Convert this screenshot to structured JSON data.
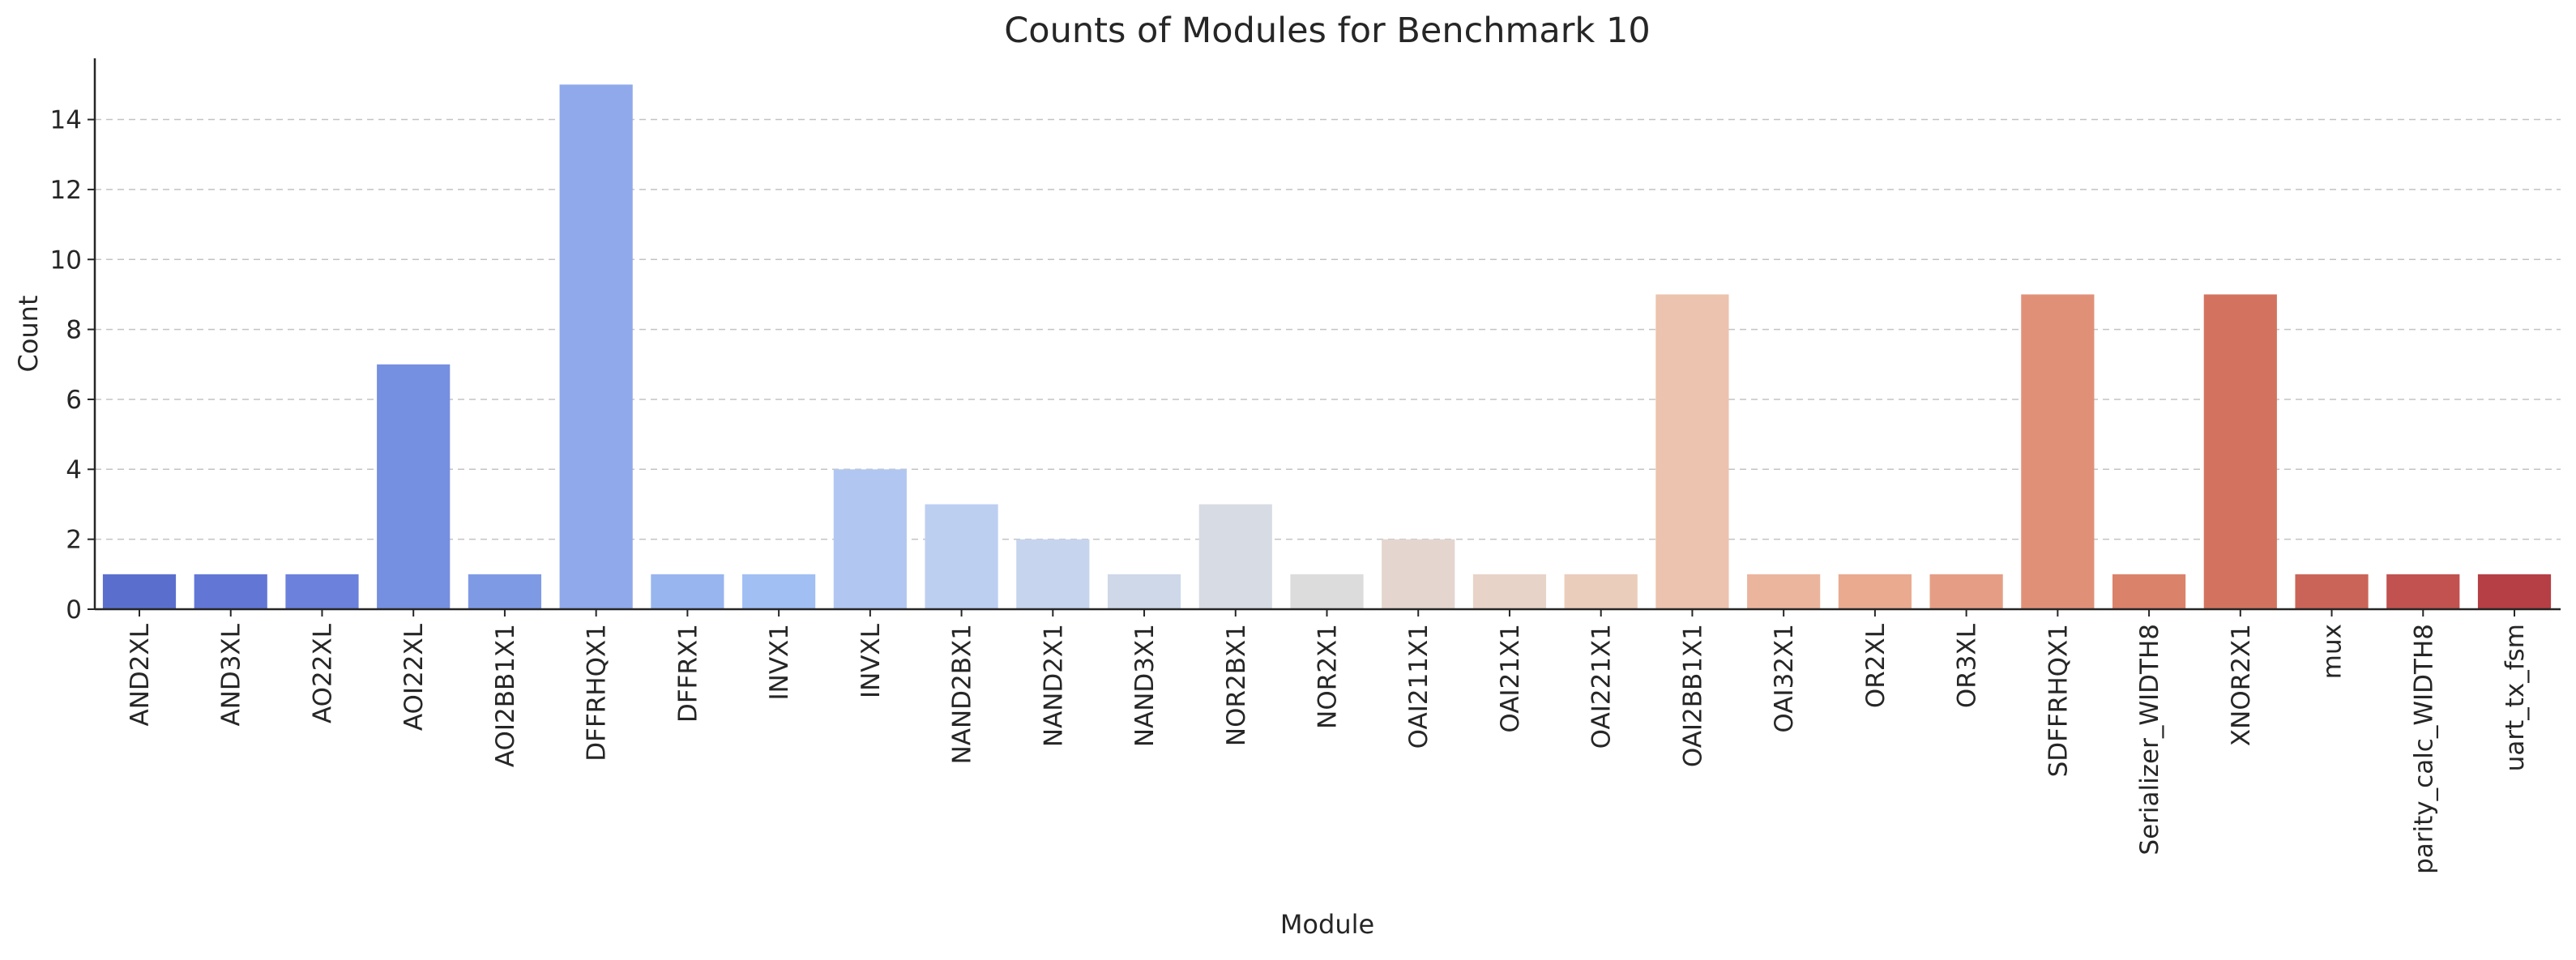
{
  "chart_data": {
    "type": "bar",
    "title": "Counts of Modules for Benchmark 10",
    "xlabel": "Module",
    "ylabel": "Count",
    "ylim": [
      0,
      15.75
    ],
    "yticks": [
      0,
      2,
      4,
      6,
      8,
      10,
      12,
      14
    ],
    "grid": "y-dashed",
    "categories": [
      "AND2XL",
      "AND3XL",
      "AO22XL",
      "AOI22XL",
      "AOI2BB1X1",
      "DFFRHQX1",
      "DFFRX1",
      "INVX1",
      "INVXL",
      "NAND2BX1",
      "NAND2X1",
      "NAND3X1",
      "NOR2BX1",
      "NOR2X1",
      "OAI211X1",
      "OAI21X1",
      "OAI221X1",
      "OAI2BB1X1",
      "OAI32X1",
      "OR2XL",
      "OR3XL",
      "SDFFRHQX1",
      "Serializer_WIDTH8",
      "XNOR2X1",
      "mux",
      "parity_calc_WIDTH8",
      "uart_tx_fsm"
    ],
    "values": [
      1,
      1,
      1,
      7,
      1,
      15,
      1,
      1,
      4,
      3,
      2,
      1,
      3,
      1,
      2,
      1,
      1,
      9,
      1,
      1,
      1,
      9,
      1,
      9,
      1,
      1,
      1
    ],
    "colors": [
      "#5a6fcd",
      "#6276d6",
      "#6b81dc",
      "#7590e0",
      "#7f9ae5",
      "#8fa9eb",
      "#98b5f0",
      "#a1bff3",
      "#b1c7f2",
      "#bccff1",
      "#c6d4ee",
      "#cfd8e9",
      "#d7dbe3",
      "#dddcdc",
      "#e4d6cf",
      "#e8d3c8",
      "#ebcdbc",
      "#ecc3ae",
      "#ebb59d",
      "#e9aa90",
      "#e59e85",
      "#e19078",
      "#db826b",
      "#d3735f",
      "#cb6458",
      "#c1524f",
      "#b53f45"
    ]
  }
}
